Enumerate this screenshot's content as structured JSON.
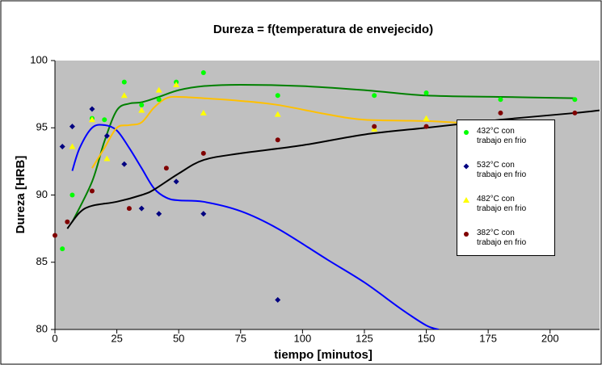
{
  "chart_data": {
    "type": "scatter",
    "title": "Dureza = f(temperatura de envejecido)",
    "x_label": "tiempo  [minutos]",
    "y_label": "Dureza [HRB]",
    "xlim": [
      0,
      220
    ],
    "ylim": [
      80,
      100
    ],
    "xticks": [
      0,
      25,
      50,
      75,
      100,
      125,
      150,
      175,
      200
    ],
    "yticks": [
      80,
      85,
      90,
      95,
      100
    ],
    "plot_background": "#c0c0c0",
    "series": [
      {
        "name": "432°C con trabajo en frio",
        "marker": "circle",
        "color": "#00ff00",
        "line_color": "#008000",
        "x": [
          3,
          7,
          15,
          20,
          28,
          35,
          42,
          49,
          60,
          90,
          129,
          150,
          180,
          210
        ],
        "values": [
          86,
          90,
          95.7,
          95.6,
          98.4,
          96.7,
          97.1,
          98.4,
          99.1,
          97.4,
          97.4,
          97.6,
          97.1,
          97.1
        ],
        "trend": {
          "x": [
            7,
            15,
            20,
            25,
            30,
            35,
            42,
            50,
            60,
            75,
            100,
            125,
            150,
            180,
            210
          ],
          "values": [
            88,
            91,
            94,
            96.3,
            96.8,
            96.9,
            97.3,
            97.8,
            98.1,
            98.2,
            98.1,
            97.8,
            97.4,
            97.3,
            97.2
          ]
        }
      },
      {
        "name": "532°C con trabajo en frio",
        "marker": "diamond",
        "color": "#000080",
        "line_color": "#0000ff",
        "x": [
          3,
          7,
          15,
          21,
          28,
          35,
          42,
          49,
          60,
          90
        ],
        "values": [
          93.6,
          95.1,
          96.4,
          94.4,
          92.3,
          89,
          88.6,
          91,
          88.6,
          82.2
        ],
        "trend": {
          "x": [
            7,
            10,
            15,
            20,
            25,
            30,
            35,
            40,
            45,
            50,
            60,
            75,
            90,
            110,
            125,
            140,
            150,
            155
          ],
          "values": [
            91.8,
            93.5,
            95,
            95.2,
            94.8,
            93.5,
            92,
            90.5,
            89.8,
            89.6,
            89.5,
            88.8,
            87.5,
            85.2,
            83.5,
            81.5,
            80.3,
            80
          ]
        }
      },
      {
        "name": "482°C con trabajo en frio",
        "marker": "triangle",
        "color": "#ffff00",
        "line_color": "#ffc000",
        "x": [
          7,
          15,
          21,
          28,
          35,
          42,
          49,
          60,
          90,
          129,
          150
        ],
        "values": [
          93.6,
          95.6,
          92.7,
          97.4,
          96.3,
          97.8,
          98.2,
          96.1,
          96,
          94.9,
          95.7
        ],
        "trend": {
          "x": [
            15,
            20,
            25,
            30,
            35,
            40,
            45,
            50,
            60,
            75,
            90,
            110,
            125,
            150,
            170
          ],
          "values": [
            92,
            93.5,
            95,
            95.2,
            95.4,
            96.5,
            97.2,
            97.3,
            97.2,
            97,
            96.7,
            96,
            95.6,
            95.5,
            95.3
          ]
        }
      },
      {
        "name": "382°C con trabajo en frio",
        "marker": "circle",
        "color": "#800000",
        "line_color": "#000000",
        "x": [
          0,
          5,
          15,
          30,
          45,
          60,
          90,
          129,
          150,
          180,
          210
        ],
        "values": [
          87,
          88,
          90.3,
          89,
          92,
          93.1,
          94.1,
          95.1,
          95.1,
          96.1,
          96.1
        ],
        "trend": {
          "x": [
            5,
            10,
            15,
            25,
            35,
            40,
            50,
            60,
            75,
            100,
            125,
            150,
            180,
            210,
            220
          ],
          "values": [
            87.5,
            88.7,
            89.2,
            89.5,
            90,
            90.4,
            91.6,
            92.6,
            93.1,
            93.7,
            94.5,
            95,
            95.6,
            96.1,
            96.3
          ]
        }
      }
    ]
  }
}
